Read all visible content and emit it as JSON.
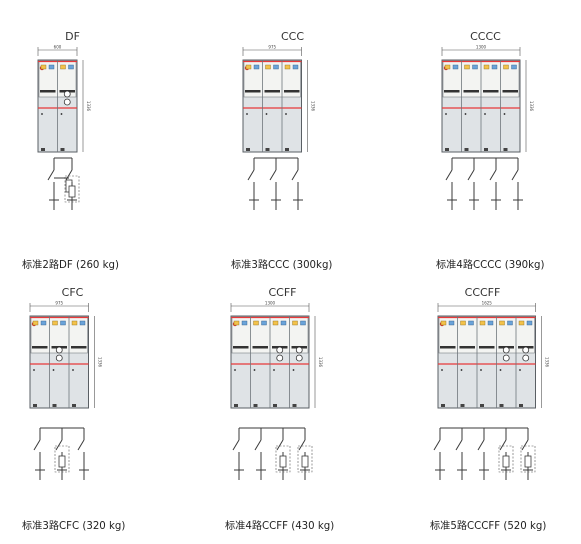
{
  "colors": {
    "accent_red": "#e8393a",
    "cabinet_body": "#dfe3e6",
    "frame": "#5a5f64"
  },
  "configs": [
    {
      "code": "DF",
      "caption": "标准2路DF (260 kg)",
      "width_label": "600",
      "height_label": "1336",
      "panels": [
        "D",
        "F"
      ]
    },
    {
      "code": "CCC",
      "caption": "标准3路CCC (300kg)",
      "width_label": "975",
      "height_label": "1336",
      "panels": [
        "C",
        "C",
        "C"
      ]
    },
    {
      "code": "CCCC",
      "caption": "标准4路CCCC (390kg)",
      "width_label": "1300",
      "height_label": "1336",
      "panels": [
        "C",
        "C",
        "C",
        "C"
      ]
    },
    {
      "code": "CFC",
      "caption": "标准3路CFC (320 kg)",
      "width_label": "975",
      "height_label": "1336",
      "panels": [
        "C",
        "F",
        "C"
      ]
    },
    {
      "code": "CCFF",
      "caption": "标准4路CCFF (430 kg)",
      "width_label": "1300",
      "height_label": "1336",
      "panels": [
        "C",
        "C",
        "F",
        "F"
      ]
    },
    {
      "code": "CCCFF",
      "caption": "标准5路CCCFF  (520 kg)",
      "width_label": "1625",
      "height_label": "1336",
      "panels": [
        "C",
        "C",
        "C",
        "F",
        "F"
      ]
    }
  ]
}
